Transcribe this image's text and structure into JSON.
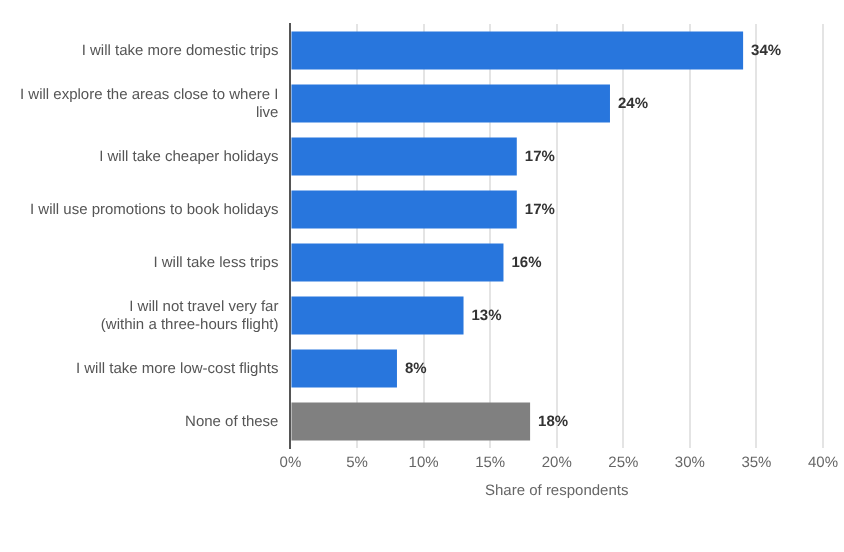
{
  "chart_data": {
    "type": "bar",
    "orientation": "horizontal",
    "xlabel": "Share of respondents",
    "categories": [
      "I will take more domestic trips",
      "I will explore the areas close to where I\nlive",
      "I will take cheaper holidays",
      "I will use promotions to book holidays",
      "I will take less trips",
      "I will not travel very far\n(within a three-hours flight)",
      "I will take more low-cost flights",
      "None of these"
    ],
    "values": [
      34,
      24,
      17,
      17,
      16,
      13,
      8,
      18
    ],
    "colors": [
      "#2876dd",
      "#2876dd",
      "#2876dd",
      "#2876dd",
      "#2876dd",
      "#2876dd",
      "#2876dd",
      "#808080"
    ],
    "value_labels": [
      "34%",
      "24%",
      "17%",
      "17%",
      "16%",
      "13%",
      "8%",
      "18%"
    ],
    "xlim": [
      0,
      40
    ],
    "xticks": [
      {
        "value": 0,
        "label": "0%"
      },
      {
        "value": 5,
        "label": "5%"
      },
      {
        "value": 10,
        "label": "10%"
      },
      {
        "value": 15,
        "label": "15%"
      },
      {
        "value": 20,
        "label": "20%"
      },
      {
        "value": 25,
        "label": "25%"
      },
      {
        "value": 30,
        "label": "30%"
      },
      {
        "value": 35,
        "label": "35%"
      },
      {
        "value": 40,
        "label": "40%"
      }
    ],
    "grid": "x"
  }
}
